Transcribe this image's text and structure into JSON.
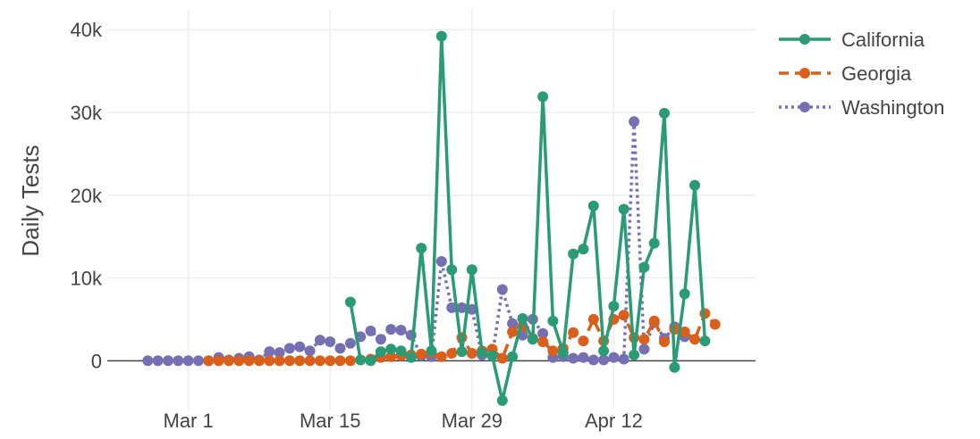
{
  "chart_data": {
    "type": "line",
    "title": "",
    "xlabel": "",
    "ylabel": "Daily Tests",
    "x_start": "2020-02-26",
    "x_ticks": [
      {
        "date": "2020-03-01",
        "label": "Mar 1"
      },
      {
        "date": "2020-03-15",
        "label": "Mar 15"
      },
      {
        "date": "2020-03-29",
        "label": "Mar 29"
      },
      {
        "date": "2020-04-12",
        "label": "Apr 12"
      }
    ],
    "xlim": [
      "2020-02-22",
      "2020-04-26"
    ],
    "y_ticks": [
      {
        "value": 0,
        "label": "0"
      },
      {
        "value": 10000,
        "label": "10k"
      },
      {
        "value": 20000,
        "label": "20k"
      },
      {
        "value": 30000,
        "label": "30k"
      },
      {
        "value": 40000,
        "label": "40k"
      }
    ],
    "ylim": [
      -6000,
      42500
    ],
    "grid": true,
    "legend_position": "top-right",
    "series": [
      {
        "name": "California",
        "color": "#2a9b74",
        "dash": "solid",
        "start_date": "2020-03-17",
        "values": [
          7100,
          100,
          0,
          1100,
          1400,
          1200,
          400,
          13600,
          1200,
          39200,
          11000,
          1100,
          11000,
          1000,
          600,
          -4800,
          500,
          5100,
          2600,
          31900,
          4800,
          1000,
          12900,
          13500,
          18700,
          1200,
          6600,
          18300,
          700,
          11300,
          14200,
          29900,
          -800,
          8100,
          21200,
          2400
        ]
      },
      {
        "name": "Georgia",
        "color": "#d95f1b",
        "dash": "dash",
        "start_date": "2020-03-03",
        "values": [
          0,
          0,
          0,
          0,
          0,
          0,
          0,
          0,
          0,
          0,
          0,
          0,
          0,
          0,
          0,
          100,
          200,
          400,
          500,
          600,
          700,
          800,
          1000,
          500,
          900,
          2800,
          900,
          1200,
          1400,
          300,
          3500,
          4200,
          2700,
          2300,
          1200,
          1500,
          3400,
          2400,
          5000,
          2400,
          5000,
          5500,
          2800,
          2600,
          4800,
          2300,
          3800,
          3500,
          2600,
          5700,
          4400
        ]
      },
      {
        "name": "Washington",
        "color": "#7570b3",
        "dash": "dot",
        "start_date": "2020-02-26",
        "values": [
          0,
          0,
          0,
          0,
          0,
          0,
          0,
          400,
          100,
          300,
          500,
          100,
          1100,
          1000,
          1500,
          1700,
          1200,
          2500,
          2300,
          1500,
          2100,
          2900,
          3600,
          2600,
          3800,
          3700,
          3100,
          600,
          500,
          12000,
          6400,
          6400,
          6200,
          700,
          600,
          8600,
          4500,
          3100,
          5000,
          3300,
          400,
          500,
          300,
          400,
          100,
          100,
          400,
          200,
          28900,
          1400,
          4600,
          2700,
          4100,
          2900
        ]
      }
    ]
  }
}
